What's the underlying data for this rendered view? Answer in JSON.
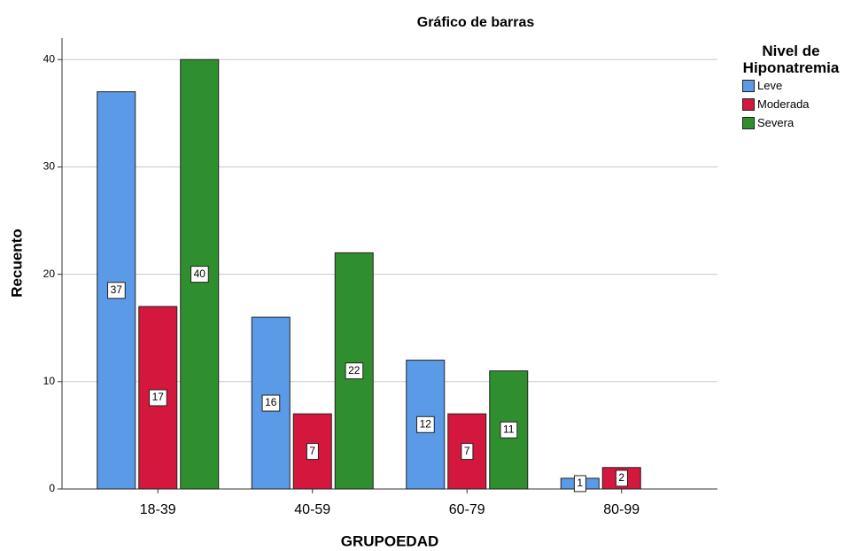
{
  "chart_data": {
    "type": "bar",
    "title": "Gráfico de barras",
    "x_label": "GRUPOEDAD",
    "y_label": "Recuento",
    "legend_title": "Nivel de Hiponatremia",
    "categories": [
      "18-39",
      "40-59",
      "60-79",
      "80-99"
    ],
    "series": [
      {
        "name": "Leve",
        "color": "#5b9ae6",
        "values": [
          37,
          16,
          12,
          1
        ]
      },
      {
        "name": "Moderada",
        "color": "#d3173d",
        "values": [
          17,
          7,
          7,
          2
        ]
      },
      {
        "name": "Severa",
        "color": "#2f8f2f",
        "values": [
          40,
          22,
          11,
          null
        ]
      }
    ],
    "ylim": [
      0,
      42
    ],
    "yticks": [
      0,
      10,
      20,
      30,
      40
    ],
    "grid": true
  }
}
